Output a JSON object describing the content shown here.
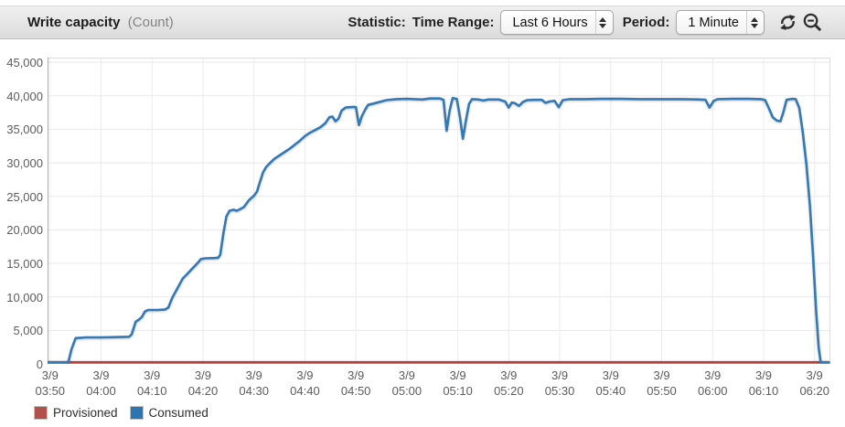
{
  "header": {
    "title": "Write capacity",
    "title_unit": "(Count)",
    "statistic_label": "Statistic:",
    "time_range_label": "Time Range:",
    "time_range_value": "Last 6 Hours",
    "period_label": "Period:",
    "period_value": "1 Minute",
    "icons": [
      "refresh-icon",
      "zoom-out-icon"
    ]
  },
  "legend": {
    "items": [
      {
        "label": "Provisioned",
        "color": "#b2504b"
      },
      {
        "label": "Consumed",
        "color": "#2e74b2"
      }
    ]
  },
  "chart_data": {
    "type": "line",
    "title": "Write capacity (Count)",
    "ylabel": "Count",
    "ylim": [
      0,
      45000
    ],
    "grid": true,
    "legend_position": "bottom",
    "y_ticks": [
      {
        "value": 0,
        "label": "0"
      },
      {
        "value": 5000,
        "label": "5,000"
      },
      {
        "value": 10000,
        "label": "10,000"
      },
      {
        "value": 15000,
        "label": "15,000"
      },
      {
        "value": 20000,
        "label": "20,000"
      },
      {
        "value": 25000,
        "label": "25,000"
      },
      {
        "value": 30000,
        "label": "30,000"
      },
      {
        "value": 35000,
        "label": "35,000"
      },
      {
        "value": 40000,
        "label": "40,000"
      },
      {
        "value": 45000,
        "label": "45,000"
      }
    ],
    "x_ticks": [
      {
        "t": 0,
        "date": "3/9",
        "time": "03:50"
      },
      {
        "t": 10,
        "date": "3/9",
        "time": "04:00"
      },
      {
        "t": 20,
        "date": "3/9",
        "time": "04:10"
      },
      {
        "t": 30,
        "date": "3/9",
        "time": "04:20"
      },
      {
        "t": 40,
        "date": "3/9",
        "time": "04:30"
      },
      {
        "t": 50,
        "date": "3/9",
        "time": "04:40"
      },
      {
        "t": 60,
        "date": "3/9",
        "time": "04:50"
      },
      {
        "t": 70,
        "date": "3/9",
        "time": "05:00"
      },
      {
        "t": 80,
        "date": "3/9",
        "time": "05:10"
      },
      {
        "t": 90,
        "date": "3/9",
        "time": "05:20"
      },
      {
        "t": 100,
        "date": "3/9",
        "time": "05:30"
      },
      {
        "t": 110,
        "date": "3/9",
        "time": "05:40"
      },
      {
        "t": 120,
        "date": "3/9",
        "time": "05:50"
      },
      {
        "t": 130,
        "date": "3/9",
        "time": "06:00"
      },
      {
        "t": 140,
        "date": "3/9",
        "time": "06:10"
      },
      {
        "t": 150,
        "date": "3/9",
        "time": "06:20"
      }
    ],
    "x_domain_minutes": [
      -0.5,
      153.1
    ],
    "x_note": "t = minutes after 03:50 on 3/9",
    "series": [
      {
        "name": "Provisioned",
        "color": "#b5403c",
        "points": [
          [
            -0.5,
            0
          ],
          [
            152.8,
            0
          ]
        ]
      },
      {
        "name": "Consumed",
        "color": "#3379b7",
        "points": [
          [
            -0.5,
            0
          ],
          [
            3,
            0
          ],
          [
            3.6,
            300
          ],
          [
            4.2,
            2200
          ],
          [
            5,
            3850
          ],
          [
            7,
            3950
          ],
          [
            10,
            3950
          ],
          [
            13,
            4000
          ],
          [
            15.5,
            4050
          ],
          [
            16,
            4400
          ],
          [
            16.8,
            6300
          ],
          [
            17.4,
            6600
          ],
          [
            18,
            7000
          ],
          [
            18.6,
            7800
          ],
          [
            19.2,
            8050
          ],
          [
            21,
            8050
          ],
          [
            22.5,
            8100
          ],
          [
            23.2,
            8400
          ],
          [
            24,
            9900
          ],
          [
            25,
            11300
          ],
          [
            26,
            12700
          ],
          [
            27,
            13500
          ],
          [
            28,
            14300
          ],
          [
            29,
            15100
          ],
          [
            29.6,
            15650
          ],
          [
            30.5,
            15750
          ],
          [
            32.4,
            15800
          ],
          [
            33,
            15850
          ],
          [
            33.4,
            16300
          ],
          [
            34,
            19500
          ],
          [
            34.6,
            22000
          ],
          [
            35.2,
            22850
          ],
          [
            36,
            23000
          ],
          [
            36.6,
            22850
          ],
          [
            37.2,
            23050
          ],
          [
            38,
            23400
          ],
          [
            39,
            24400
          ],
          [
            40,
            25100
          ],
          [
            40.6,
            25700
          ],
          [
            41.2,
            27200
          ],
          [
            41.8,
            28600
          ],
          [
            42.4,
            29400
          ],
          [
            43.2,
            30000
          ],
          [
            44,
            30600
          ],
          [
            45,
            31100
          ],
          [
            46,
            31600
          ],
          [
            47,
            32100
          ],
          [
            48,
            32700
          ],
          [
            49,
            33300
          ],
          [
            50,
            34000
          ],
          [
            51,
            34500
          ],
          [
            52,
            34900
          ],
          [
            53,
            35300
          ],
          [
            54,
            35900
          ],
          [
            54.8,
            36800
          ],
          [
            55.4,
            36900
          ],
          [
            56,
            36200
          ],
          [
            56.6,
            36600
          ],
          [
            57.2,
            37800
          ],
          [
            58,
            38250
          ],
          [
            59.5,
            38350
          ],
          [
            60,
            38300
          ],
          [
            60.6,
            35650
          ],
          [
            61.2,
            37000
          ],
          [
            61.8,
            37900
          ],
          [
            62.4,
            38650
          ],
          [
            63.5,
            38850
          ],
          [
            65,
            39150
          ],
          [
            66,
            39350
          ],
          [
            68,
            39500
          ],
          [
            70,
            39550
          ],
          [
            71.5,
            39500
          ],
          [
            73,
            39450
          ],
          [
            74.5,
            39600
          ],
          [
            76.5,
            39600
          ],
          [
            77.2,
            39400
          ],
          [
            77.8,
            34800
          ],
          [
            78.4,
            37800
          ],
          [
            79,
            39650
          ],
          [
            79.8,
            39550
          ],
          [
            80.4,
            37000
          ],
          [
            81,
            33600
          ],
          [
            81.6,
            36300
          ],
          [
            82.2,
            38800
          ],
          [
            82.8,
            39500
          ],
          [
            84,
            39450
          ],
          [
            85,
            39300
          ],
          [
            86,
            39450
          ],
          [
            88,
            39450
          ],
          [
            89.3,
            39150
          ],
          [
            90,
            38250
          ],
          [
            90.6,
            39000
          ],
          [
            91.2,
            38900
          ],
          [
            92,
            38500
          ],
          [
            92.8,
            39100
          ],
          [
            93.6,
            39350
          ],
          [
            95,
            39400
          ],
          [
            96.5,
            39400
          ],
          [
            97.2,
            38950
          ],
          [
            98,
            39150
          ],
          [
            99,
            39250
          ],
          [
            99.8,
            38300
          ],
          [
            100.6,
            39350
          ],
          [
            102,
            39500
          ],
          [
            105,
            39500
          ],
          [
            108,
            39550
          ],
          [
            112,
            39550
          ],
          [
            116,
            39500
          ],
          [
            120,
            39500
          ],
          [
            124,
            39500
          ],
          [
            127.5,
            39450
          ],
          [
            128.6,
            39400
          ],
          [
            129.4,
            38250
          ],
          [
            130.2,
            39250
          ],
          [
            131,
            39500
          ],
          [
            134,
            39550
          ],
          [
            137,
            39550
          ],
          [
            139.5,
            39500
          ],
          [
            140.3,
            39350
          ],
          [
            141,
            38200
          ],
          [
            141.8,
            36800
          ],
          [
            142.6,
            36300
          ],
          [
            143.3,
            36200
          ],
          [
            143.9,
            37600
          ],
          [
            144.5,
            39400
          ],
          [
            145.6,
            39550
          ],
          [
            146.3,
            39500
          ],
          [
            147,
            38200
          ],
          [
            147.7,
            34500
          ],
          [
            148.4,
            29800
          ],
          [
            149.1,
            23500
          ],
          [
            149.7,
            16000
          ],
          [
            150.3,
            8000
          ],
          [
            150.8,
            2500
          ],
          [
            151.2,
            300
          ],
          [
            151.6,
            0
          ],
          [
            152.8,
            0
          ]
        ]
      }
    ]
  }
}
